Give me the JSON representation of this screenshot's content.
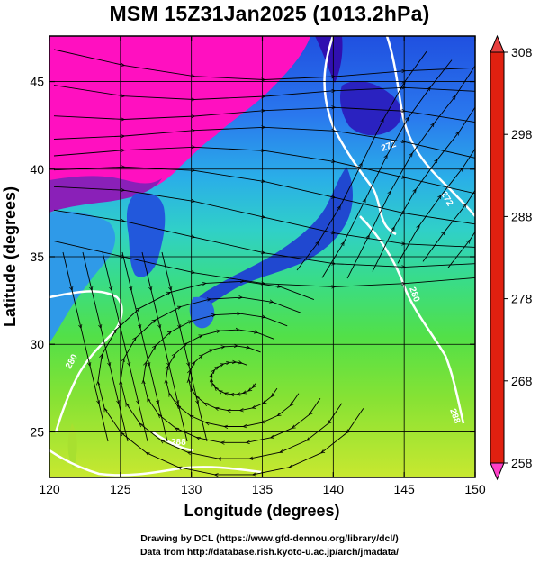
{
  "title": "MSM 15Z31Jan2025 (1013.2hPa)",
  "x_axis": {
    "label": "Longitude (degrees)",
    "ticks": [
      120,
      125,
      130,
      135,
      140,
      145,
      150
    ],
    "range": [
      120,
      150
    ]
  },
  "y_axis": {
    "label": "Latitude  (degrees)",
    "ticks": [
      25,
      30,
      35,
      40,
      45
    ],
    "range": [
      22.4,
      47.6
    ]
  },
  "colorbar": {
    "ticks": [
      258,
      268,
      278,
      288,
      298,
      308
    ],
    "range": [
      258,
      308
    ],
    "colors": [
      "#ff00c8",
      "#a000c0",
      "#3c20d0",
      "#1e50e6",
      "#2a88ee",
      "#30c8e0",
      "#30d8b0",
      "#38e070",
      "#60e030",
      "#a8e830",
      "#e8e830",
      "#f0c020",
      "#ff8a10",
      "#ff4010",
      "#e02010"
    ]
  },
  "contour_labels": [
    "272",
    "272",
    "280",
    "280",
    "288",
    "288"
  ],
  "footer": {
    "line1": "Drawing by DCL (https://www.gfd-dennou.org/library/dcl/)",
    "line2": "Data from http://database.rish.kyoto-u.ac.jp/arch/jmadata/"
  }
}
